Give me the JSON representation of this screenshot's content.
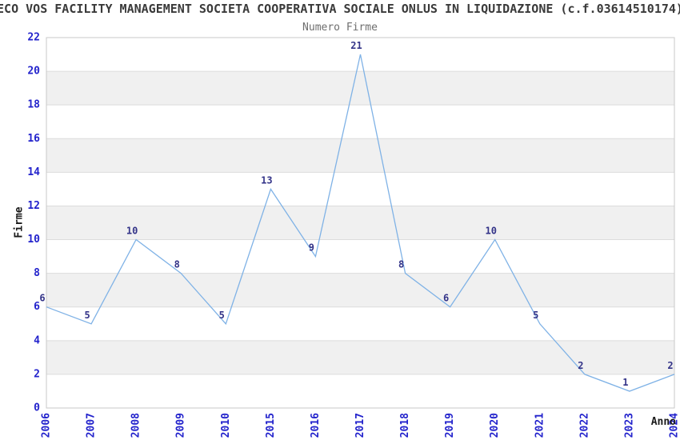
{
  "chart_data": {
    "type": "line",
    "title": "ECO VOS FACILITY MANAGEMENT SOCIETA COOPERATIVA SOCIALE ONLUS IN LIQUIDAZIONE (c.f.03614510174)",
    "subtitle": "Numero Firme",
    "xlabel": "Anno",
    "ylabel": "Firme",
    "categories": [
      "2006",
      "2007",
      "2008",
      "2009",
      "2010",
      "2015",
      "2016",
      "2017",
      "2018",
      "2019",
      "2020",
      "2021",
      "2022",
      "2023",
      "2024"
    ],
    "values": [
      6,
      5,
      10,
      8,
      5,
      13,
      9,
      21,
      8,
      6,
      10,
      5,
      2,
      1,
      2
    ],
    "ylim": [
      0,
      22
    ],
    "ytick_step": 2,
    "yticks": [
      0,
      2,
      4,
      6,
      8,
      10,
      12,
      14,
      16,
      18,
      20,
      22
    ],
    "legend_position": "none",
    "grid": "alternating horizontal bands every 2 units with light gridlines",
    "data_labels_shown": true,
    "colors": {
      "line": "#7fb2e6",
      "tick_label": "#2323cc",
      "data_label": "#333388",
      "band_gray": "#f0f0f0",
      "band_white": "#ffffff",
      "grid_line": "#dcdcdc",
      "plot_border": "#c9c9c9",
      "title": "#3a3a3a",
      "subtitle": "#6e6e6e",
      "axis_title": "#1a1a1a"
    }
  }
}
